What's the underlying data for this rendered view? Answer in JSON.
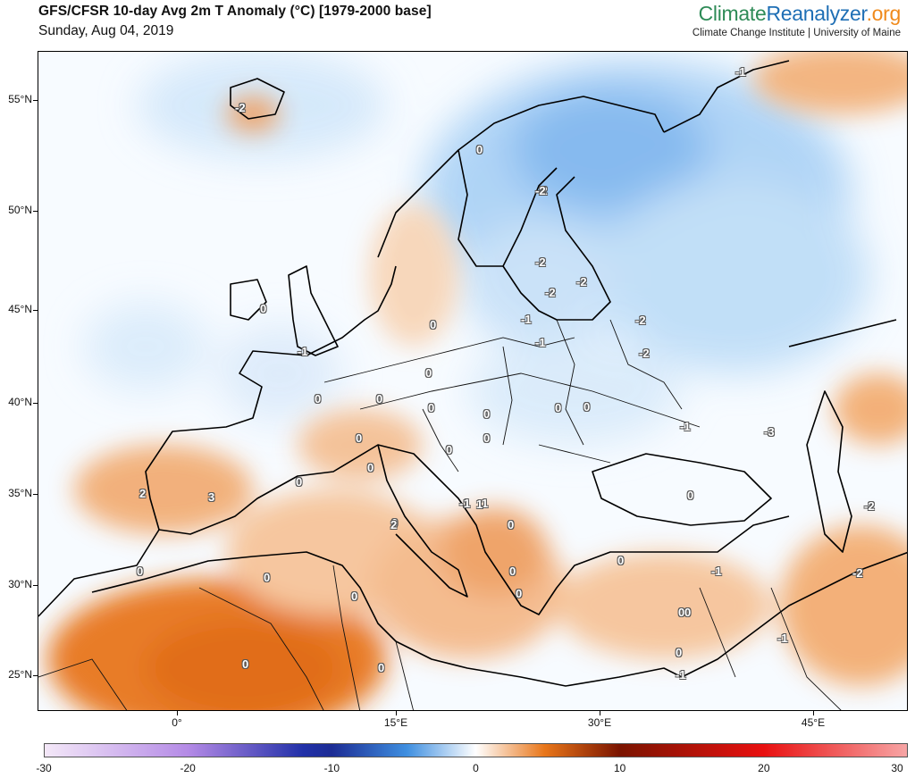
{
  "header": {
    "title": "GFS/CFSR 10-day Avg 2m T Anomaly (°C) [1979-2000 base]",
    "date": "Sunday, Aug 04, 2019",
    "brand_part1": "Climate",
    "brand_part2": "Reanalyzer",
    "brand_part3": ".org",
    "brand_subtitle": "Climate Change Institute | University of Maine"
  },
  "map": {
    "lat_labels": [
      "55°N",
      "50°N",
      "45°N",
      "40°N",
      "35°N",
      "30°N",
      "25°N"
    ],
    "lon_labels": [
      "0°",
      "15°E",
      "30°E",
      "45°E"
    ],
    "contour_labels": [
      "-2",
      "-2",
      "-1",
      "0",
      "-2",
      "-2",
      "-2",
      "-2",
      "-2",
      "0",
      "-1",
      "-1",
      "-2",
      "-1",
      "0",
      "0",
      "0",
      "0",
      "0",
      "0",
      "0",
      "0",
      "0",
      "0",
      "-1",
      "0",
      "0",
      "0",
      "-3",
      "-1",
      "0",
      "-2",
      "2",
      "3",
      "0",
      "0",
      "1",
      "1",
      "0",
      "0",
      "2",
      "0",
      "0",
      "0",
      "0",
      "-1",
      "0",
      "-2",
      "1",
      "0",
      "0",
      "0",
      "-1",
      "0",
      "-1"
    ]
  },
  "colorbar": {
    "ticks": [
      "-30",
      "-20",
      "-10",
      "0",
      "10",
      "20",
      "30"
    ],
    "colors": {
      "neg30": "#f4e8f8",
      "neg20": "#b48ae6",
      "neg10": "#1c2c94",
      "neg5": "#3f8fe0",
      "zero": "#ffffff",
      "pos5": "#e8761a",
      "pos10": "#7a1400",
      "pos20": "#e81010",
      "pos30": "#f7a5a5"
    }
  }
}
